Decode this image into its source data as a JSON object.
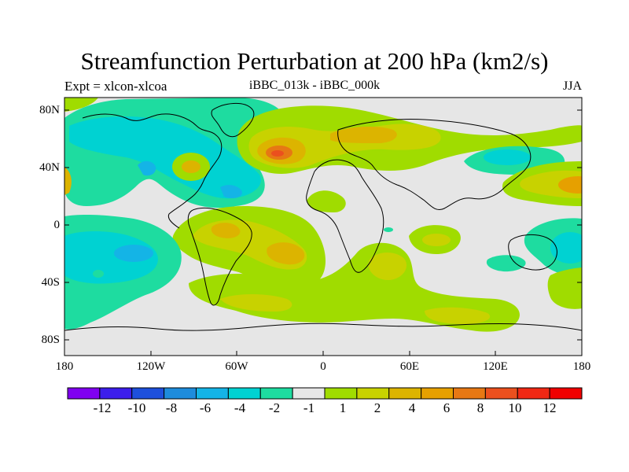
{
  "title": "Streamfunction Perturbation at 200 hPa (km2/s)",
  "left_subtitle": "Expt = xlcon-xlcoa",
  "center_subtitle": "iBBC_013k - iBBC_000k",
  "right_subtitle": "JJA",
  "map_data": {
    "type": "filled contour map (global, lat-lon)",
    "latitude_ticks": [
      "80N",
      "40N",
      "0",
      "40S",
      "80S"
    ],
    "longitude_ticks": [
      "180",
      "120W",
      "60W",
      "0",
      "60E",
      "120E",
      "180"
    ],
    "features": [
      {
        "name": "North Atlantic positive center",
        "lon": -30,
        "lat": 50,
        "value": 8
      },
      {
        "name": "North Atlantic ring positive",
        "lon": -90,
        "lat": 40,
        "value": 4
      },
      {
        "name": "North America negative trough",
        "lon": -80,
        "lat": 40,
        "value": -2
      },
      {
        "name": "Eurasia positive belt",
        "lon": 40,
        "lat": 60,
        "value": 4
      },
      {
        "name": "East Asia negative",
        "lon": 115,
        "lat": 50,
        "value": -2
      },
      {
        "name": "West Pacific positive",
        "lon": 170,
        "lat": 30,
        "value": 6
      },
      {
        "name": "South America positive",
        "lon": -45,
        "lat": -15,
        "value": 4
      },
      {
        "name": "South Atlantic positive",
        "lon": -25,
        "lat": -20,
        "value": 6
      },
      {
        "name": "Southern Indian Ocean positive",
        "lon": 45,
        "lat": -30,
        "value": 4
      },
      {
        "name": "Southeast Pacific negative",
        "lon": -145,
        "lat": -25,
        "value": -4
      },
      {
        "name": "Australia region negative",
        "lon": 150,
        "lat": -10,
        "value": -2
      }
    ]
  },
  "colorbar": {
    "labels": [
      "-12",
      "-10",
      "-8",
      "-6",
      "-4",
      "-2",
      "-1",
      "1",
      "2",
      "4",
      "6",
      "8",
      "10",
      "12"
    ],
    "colors": [
      "#8000f0",
      "#3c1eeb",
      "#1e50dc",
      "#1e8cdc",
      "#14b4e6",
      "#00d2d2",
      "#1edca0",
      "#e6e6e6",
      "#a0dc00",
      "#c8d200",
      "#dcb400",
      "#e6a000",
      "#e67814",
      "#eb501e",
      "#f02814",
      "#f00000"
    ]
  },
  "field_colors": {
    "neutral": "#e6e6e6",
    "neg1": "#1edca0",
    "neg2": "#00d2d2",
    "neg4": "#14b4e6",
    "neg6": "#1e8cdc",
    "pos1": "#a0dc00",
    "pos2": "#c8d200",
    "pos4": "#dcb400",
    "pos6": "#e6a000",
    "pos8": "#e67814",
    "pos10": "#eb501e"
  }
}
